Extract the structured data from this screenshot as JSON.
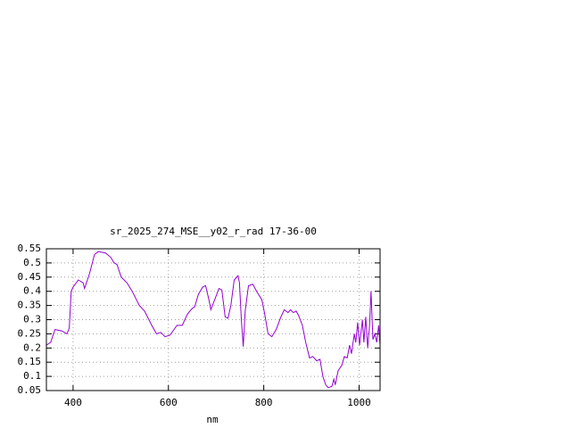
{
  "chart_data": {
    "type": "line",
    "title": "sr_2025_274_MSE__y02_r_rad 17-36-00",
    "x_label": "nm",
    "x": [
      344,
      353,
      362,
      377,
      387,
      392,
      396,
      400,
      411,
      421,
      424,
      434,
      445,
      453,
      468,
      479,
      486,
      492,
      501,
      513,
      524,
      539,
      550,
      565,
      575,
      584,
      593,
      603,
      618,
      629,
      640,
      650,
      655,
      663,
      672,
      678,
      685,
      689,
      697,
      706,
      712,
      719,
      725,
      731,
      738,
      746,
      749,
      753,
      757,
      761,
      768,
      777,
      785,
      796,
      802,
      809,
      817,
      826,
      836,
      843,
      851,
      856,
      862,
      868,
      873,
      881,
      888,
      896,
      903,
      911,
      918,
      924,
      930,
      935,
      943,
      947,
      950,
      956,
      964,
      969,
      975,
      980,
      984,
      990,
      993,
      997,
      1001,
      1007,
      1010,
      1014,
      1018,
      1022,
      1025,
      1029,
      1033,
      1037,
      1041,
      1044
    ],
    "series": [
      {
        "color": "#9400d3",
        "values": [
          0.21,
          0.22,
          0.265,
          0.26,
          0.25,
          0.27,
          0.4,
          0.415,
          0.44,
          0.43,
          0.41,
          0.46,
          0.53,
          0.54,
          0.535,
          0.52,
          0.5,
          0.495,
          0.45,
          0.43,
          0.4,
          0.35,
          0.33,
          0.28,
          0.25,
          0.255,
          0.24,
          0.245,
          0.28,
          0.28,
          0.32,
          0.34,
          0.345,
          0.39,
          0.415,
          0.42,
          0.37,
          0.335,
          0.37,
          0.41,
          0.405,
          0.31,
          0.305,
          0.35,
          0.44,
          0.455,
          0.43,
          0.3,
          0.205,
          0.33,
          0.42,
          0.425,
          0.4,
          0.37,
          0.32,
          0.25,
          0.24,
          0.265,
          0.31,
          0.335,
          0.325,
          0.335,
          0.325,
          0.33,
          0.315,
          0.28,
          0.22,
          0.165,
          0.17,
          0.155,
          0.16,
          0.1,
          0.07,
          0.06,
          0.065,
          0.09,
          0.07,
          0.12,
          0.14,
          0.17,
          0.165,
          0.21,
          0.18,
          0.25,
          0.22,
          0.29,
          0.21,
          0.3,
          0.22,
          0.31,
          0.2,
          0.28,
          0.4,
          0.23,
          0.25,
          0.22,
          0.28,
          0.21
        ]
      }
    ],
    "xlim": [
      344,
      1044
    ],
    "xticks": [
      400,
      600,
      800,
      1000
    ],
    "ylim": [
      0.05,
      0.55
    ],
    "yticks": [
      0.05,
      0.1,
      0.15,
      0.2,
      0.25,
      0.3,
      0.35,
      0.4,
      0.45,
      0.5,
      0.55
    ],
    "grid": true
  }
}
